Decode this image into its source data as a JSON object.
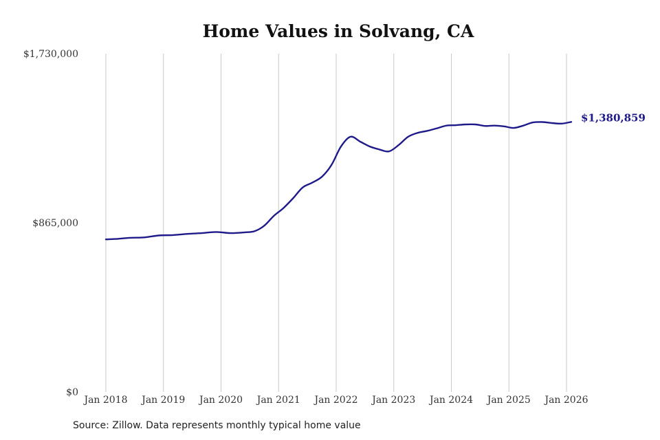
{
  "chart_data": {
    "type": "line",
    "title": "Home Values in Solvang, CA",
    "xlabel": "",
    "ylabel": "",
    "ylim": [
      0,
      1730000
    ],
    "xlim": [
      "2018-01",
      "2026-01"
    ],
    "y_ticks": [
      0,
      865000,
      1730000
    ],
    "y_tick_labels": [
      "$0",
      "$865,000",
      "$1,730,000"
    ],
    "x_ticks": [
      "2018-01",
      "2019-01",
      "2020-01",
      "2021-01",
      "2022-01",
      "2023-01",
      "2024-01",
      "2025-01",
      "2026-01"
    ],
    "x_tick_labels": [
      "Jan 2018",
      "Jan 2019",
      "Jan 2020",
      "Jan 2021",
      "Jan 2022",
      "Jan 2023",
      "Jan 2024",
      "Jan 2025",
      "Jan 2026"
    ],
    "grid": "vertical",
    "line_color": "#1f1a8a",
    "end_label": "$1,380,859",
    "series": [
      {
        "x": [
          "2018-01",
          "2018-03",
          "2018-06",
          "2018-09",
          "2018-12",
          "2019-03",
          "2019-06",
          "2019-09",
          "2019-12",
          "2020-03",
          "2020-06",
          "2020-08",
          "2020-10",
          "2020-12",
          "2021-02",
          "2021-04",
          "2021-06",
          "2021-08",
          "2021-10",
          "2021-12",
          "2022-02",
          "2022-04",
          "2022-06",
          "2022-08",
          "2022-10",
          "2022-12",
          "2023-02",
          "2023-04",
          "2023-06",
          "2023-08",
          "2023-10",
          "2023-12",
          "2024-02",
          "2024-04",
          "2024-06",
          "2024-08",
          "2024-10",
          "2024-12",
          "2025-02",
          "2025-04",
          "2025-06",
          "2025-08",
          "2025-10",
          "2025-12",
          "2026-02"
        ],
        "y": [
          780000,
          782000,
          788000,
          790000,
          800000,
          802000,
          808000,
          812000,
          818000,
          812000,
          816000,
          822000,
          850000,
          900000,
          940000,
          990000,
          1045000,
          1070000,
          1100000,
          1160000,
          1255000,
          1305000,
          1280000,
          1255000,
          1240000,
          1230000,
          1262000,
          1305000,
          1325000,
          1335000,
          1348000,
          1362000,
          1364000,
          1368000,
          1368000,
          1360000,
          1362000,
          1358000,
          1350000,
          1362000,
          1378000,
          1380000,
          1375000,
          1372000,
          1380859
        ]
      }
    ],
    "source_note": "Source: Zillow. Data represents monthly typical home value"
  }
}
